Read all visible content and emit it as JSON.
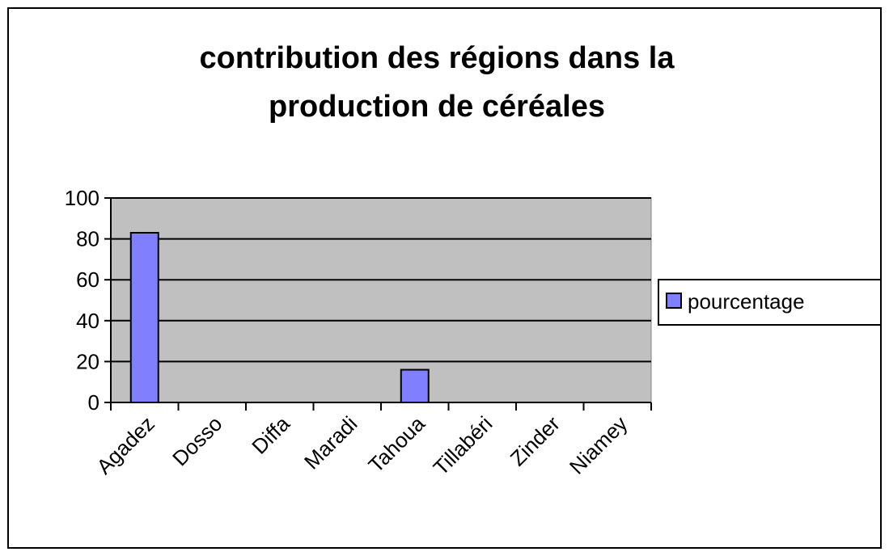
{
  "chart_data": {
    "type": "bar",
    "title": "contribution des régions dans la production de céréales",
    "categories": [
      "Agadez",
      "Dosso",
      "Diffa",
      "Maradi",
      "Tahoua",
      "Tillabéri",
      "Zinder",
      "Niamey"
    ],
    "series": [
      {
        "name": "pourcentage",
        "color": "#8080ff",
        "values": [
          83,
          0,
          0,
          0,
          16,
          0,
          0,
          0
        ]
      }
    ],
    "ylim": [
      0,
      100
    ],
    "yticks": [
      0,
      20,
      40,
      60,
      80,
      100
    ],
    "grid": true,
    "legend": "right"
  }
}
